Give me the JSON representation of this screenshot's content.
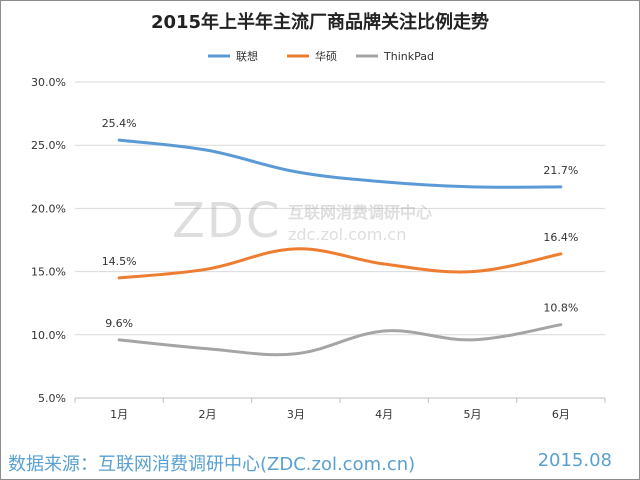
{
  "chart_data": {
    "type": "line",
    "title": "2015年上半年主流厂商品牌关注比例走势",
    "categories": [
      "1月",
      "2月",
      "3月",
      "4月",
      "5月",
      "6月"
    ],
    "y_ticks": [
      "5.0%",
      "10.0%",
      "15.0%",
      "20.0%",
      "25.0%",
      "30.0%"
    ],
    "ylim": [
      5,
      30
    ],
    "grid": true,
    "legend_position": "top",
    "series": [
      {
        "name": "联想",
        "color": "#5b9bd5",
        "values": [
          25.4,
          24.6,
          22.9,
          22.1,
          21.7,
          21.7
        ],
        "labels": [
          {
            "index": 0,
            "text": "25.4%"
          },
          {
            "index": 5,
            "text": "21.7%"
          }
        ]
      },
      {
        "name": "华硕",
        "color": "#ed7d31",
        "values": [
          14.5,
          15.2,
          16.8,
          15.6,
          15.0,
          16.4
        ],
        "labels": [
          {
            "index": 0,
            "text": "14.5%"
          },
          {
            "index": 5,
            "text": "16.4%"
          }
        ]
      },
      {
        "name": "ThinkPad",
        "color": "#a5a5a5",
        "values": [
          9.6,
          8.9,
          8.5,
          10.3,
          9.6,
          10.8
        ],
        "labels": [
          {
            "index": 0,
            "text": "9.6%"
          },
          {
            "index": 5,
            "text": "10.8%"
          }
        ]
      }
    ]
  },
  "watermark": {
    "cn": "互联网消费调研中心",
    "logo": "ZDC",
    "url": "zdc.zol.com.cn"
  },
  "footer": {
    "source": "数据来源：互联网消费调研中心(ZDC.zol.com.cn)",
    "date": "2015.08"
  }
}
